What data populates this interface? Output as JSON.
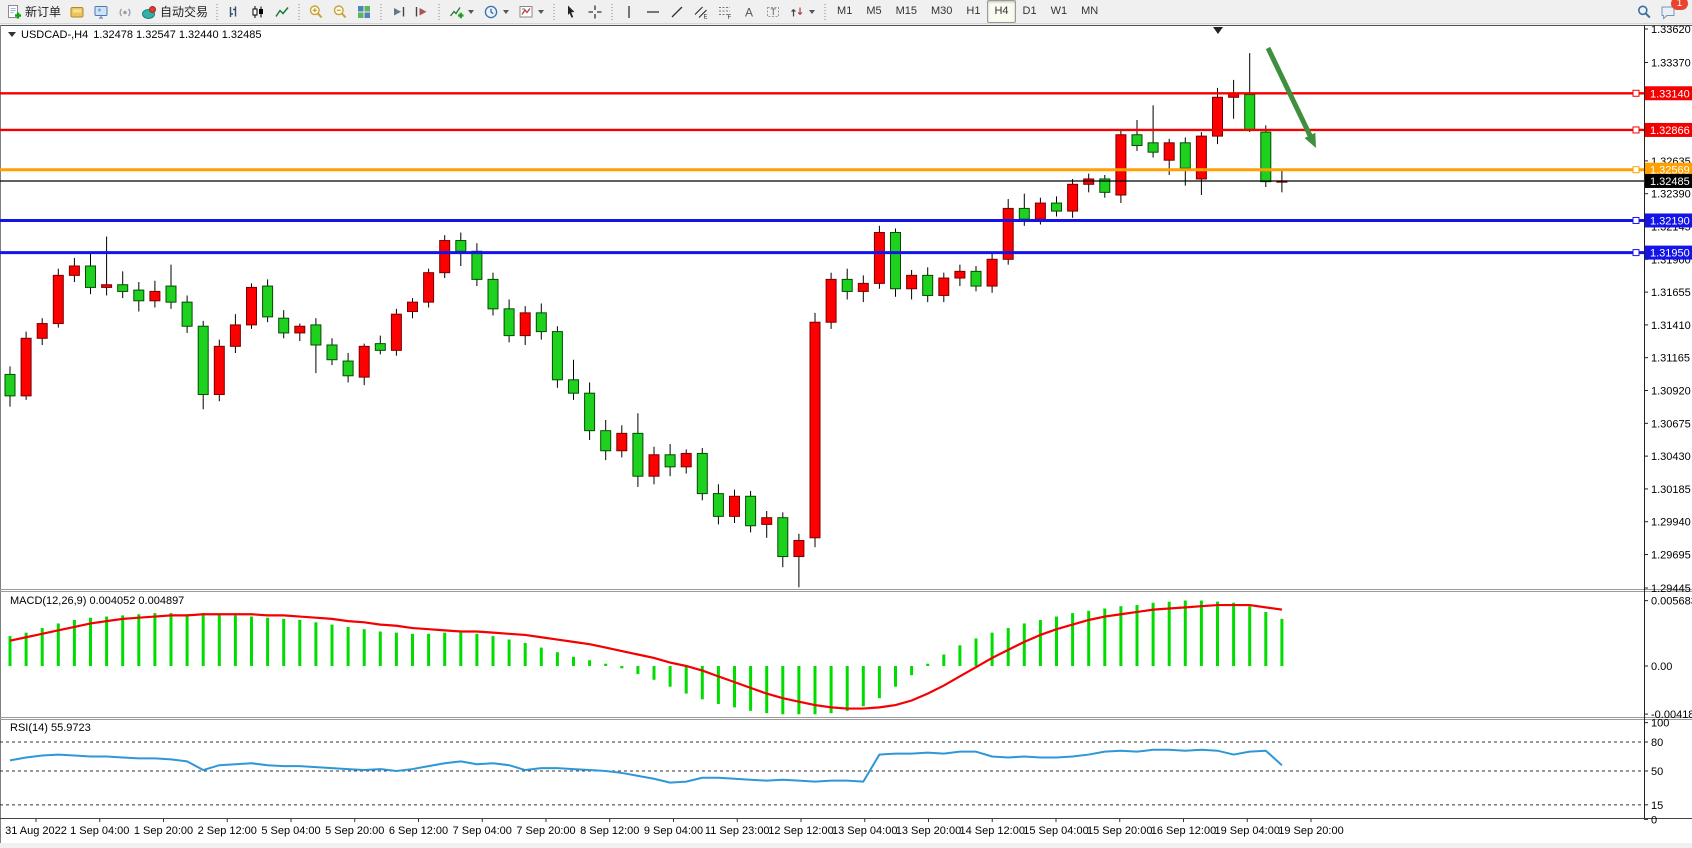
{
  "toolbar": {
    "new_order_label": "新订单",
    "auto_trading_label": "自动交易",
    "timeframes": [
      "M1",
      "M5",
      "M15",
      "M30",
      "H1",
      "H4",
      "D1",
      "W1",
      "MN"
    ],
    "active_timeframe": "H4",
    "notification_badge": "1"
  },
  "chart_header": {
    "symbol": "USDCAD-,H4",
    "ohlc": "1.32478 1.32547 1.32440 1.32485"
  },
  "price_axis": {
    "ticks": [
      "1.33620",
      "1.33370",
      "1.33125",
      "1.32880",
      "1.32635",
      "1.32390",
      "1.32145",
      "1.31900",
      "1.31655",
      "1.31410",
      "1.31165",
      "1.30920",
      "1.30675",
      "1.30430",
      "1.30185",
      "1.29940",
      "1.29695",
      "1.29445"
    ]
  },
  "levels": [
    {
      "label": "1.33140",
      "value": 1.3314,
      "color": "#f40000",
      "type": "resistance-line"
    },
    {
      "label": "1.32866",
      "value": 1.32866,
      "color": "#f40000",
      "type": "resistance-line"
    },
    {
      "label": "1.32569",
      "value": 1.32569,
      "color": "#ff9f00",
      "type": "pivot-line"
    },
    {
      "label": "1.32190",
      "value": 1.3219,
      "color": "#1414e8",
      "type": "support-line"
    },
    {
      "label": "1.31950",
      "value": 1.3195,
      "color": "#1414e8",
      "type": "support-line"
    }
  ],
  "current_price": {
    "label": "1.32485",
    "value": 1.32485,
    "color": "#000000"
  },
  "macd_panel": {
    "label": "MACD(12,26,9)",
    "values_text": "0.004052 0.004897",
    "axis_ticks": [
      "0.005683",
      "0.00",
      "-0.004182"
    ]
  },
  "rsi_panel": {
    "label": "RSI(14) 55.9723",
    "axis_ticks": [
      "100",
      "80",
      "50",
      "15",
      "0"
    ],
    "level_lines": [
      80,
      50,
      15
    ]
  },
  "time_axis": {
    "labels": [
      "31 Aug 2022",
      "1 Sep 04:00",
      "1 Sep 20:00",
      "2 Sep 12:00",
      "5 Sep 04:00",
      "5 Sep 20:00",
      "6 Sep 12:00",
      "7 Sep 04:00",
      "7 Sep 20:00",
      "8 Sep 12:00",
      "9 Sep 04:00",
      "11 Sep 23:00",
      "12 Sep 12:00",
      "13 Sep 04:00",
      "13 Sep 20:00",
      "14 Sep 12:00",
      "15 Sep 04:00",
      "15 Sep 20:00",
      "16 Sep 12:00",
      "19 Sep 04:00",
      "19 Sep 20:00"
    ]
  },
  "chart_data": {
    "type": "candlestick",
    "symbol": "USDCAD",
    "timeframe": "H4",
    "bull_color": "#ff0000",
    "bear_color": "#1fd11f",
    "wick_color": "#000000",
    "price_range": [
      1.29445,
      1.3362
    ],
    "candles": [
      [
        1.3104,
        1.311,
        1.308,
        1.3088
      ],
      [
        1.3088,
        1.3136,
        1.3085,
        1.3131
      ],
      [
        1.3131,
        1.3146,
        1.3126,
        1.3142
      ],
      [
        1.3142,
        1.3183,
        1.3139,
        1.3178
      ],
      [
        1.3178,
        1.3191,
        1.3173,
        1.3185
      ],
      [
        1.3185,
        1.3194,
        1.3164,
        1.3169
      ],
      [
        1.3169,
        1.3207,
        1.3163,
        1.3171
      ],
      [
        1.3171,
        1.3181,
        1.3161,
        1.3166
      ],
      [
        1.3167,
        1.3173,
        1.3151,
        1.3159
      ],
      [
        1.3159,
        1.3174,
        1.3154,
        1.3166
      ],
      [
        1.317,
        1.3186,
        1.3153,
        1.3158
      ],
      [
        1.3158,
        1.3163,
        1.3135,
        1.314
      ],
      [
        1.314,
        1.3144,
        1.3078,
        1.3089
      ],
      [
        1.3089,
        1.313,
        1.3084,
        1.3125
      ],
      [
        1.3125,
        1.3149,
        1.312,
        1.3141
      ],
      [
        1.3141,
        1.3172,
        1.3138,
        1.3169
      ],
      [
        1.317,
        1.3175,
        1.3143,
        1.3147
      ],
      [
        1.3146,
        1.3152,
        1.3131,
        1.3135
      ],
      [
        1.3135,
        1.3142,
        1.3129,
        1.314
      ],
      [
        1.3141,
        1.3146,
        1.3105,
        1.3126
      ],
      [
        1.3126,
        1.3131,
        1.3111,
        1.3115
      ],
      [
        1.3114,
        1.312,
        1.3098,
        1.3103
      ],
      [
        1.3102,
        1.3127,
        1.3096,
        1.3125
      ],
      [
        1.3127,
        1.3133,
        1.3119,
        1.3122
      ],
      [
        1.3122,
        1.3153,
        1.3118,
        1.3149
      ],
      [
        1.3151,
        1.3161,
        1.3146,
        1.3158
      ],
      [
        1.3158,
        1.3183,
        1.3154,
        1.318
      ],
      [
        1.318,
        1.3208,
        1.3176,
        1.3204
      ],
      [
        1.3204,
        1.321,
        1.3185,
        1.3196
      ],
      [
        1.3196,
        1.3202,
        1.317,
        1.3175
      ],
      [
        1.3175,
        1.318,
        1.3148,
        1.3153
      ],
      [
        1.3153,
        1.316,
        1.3128,
        1.3133
      ],
      [
        1.3133,
        1.3155,
        1.3126,
        1.315
      ],
      [
        1.315,
        1.3157,
        1.313,
        1.3136
      ],
      [
        1.3136,
        1.314,
        1.3094,
        1.31
      ],
      [
        1.31,
        1.3115,
        1.3085,
        1.309
      ],
      [
        1.309,
        1.3098,
        1.3055,
        1.3062
      ],
      [
        1.3062,
        1.307,
        1.304,
        1.3047
      ],
      [
        1.3047,
        1.3066,
        1.3042,
        1.306
      ],
      [
        1.306,
        1.3075,
        1.302,
        1.3028
      ],
      [
        1.3028,
        1.305,
        1.3022,
        1.3044
      ],
      [
        1.3044,
        1.3052,
        1.3028,
        1.3035
      ],
      [
        1.3035,
        1.3048,
        1.303,
        1.3045
      ],
      [
        1.3045,
        1.3049,
        1.301,
        1.3015
      ],
      [
        1.3015,
        1.3022,
        1.2992,
        1.2998
      ],
      [
        1.2998,
        1.3018,
        1.2993,
        1.3013
      ],
      [
        1.3013,
        1.3017,
        1.2986,
        1.2991
      ],
      [
        1.2992,
        1.3002,
        1.2982,
        1.2997
      ],
      [
        1.2997,
        1.3001,
        1.296,
        1.2968
      ],
      [
        1.2968,
        1.2985,
        1.2945,
        1.298
      ],
      [
        1.2982,
        1.315,
        1.2975,
        1.3143
      ],
      [
        1.3143,
        1.318,
        1.3138,
        1.3175
      ],
      [
        1.3175,
        1.3183,
        1.316,
        1.3166
      ],
      [
        1.3166,
        1.3178,
        1.3158,
        1.3172
      ],
      [
        1.3172,
        1.3215,
        1.3168,
        1.321
      ],
      [
        1.321,
        1.3213,
        1.3162,
        1.3168
      ],
      [
        1.3168,
        1.3182,
        1.316,
        1.3178
      ],
      [
        1.3178,
        1.3184,
        1.3158,
        1.3163
      ],
      [
        1.3163,
        1.318,
        1.3158,
        1.3176
      ],
      [
        1.3176,
        1.3186,
        1.317,
        1.3181
      ],
      [
        1.3181,
        1.3185,
        1.3166,
        1.317
      ],
      [
        1.317,
        1.3195,
        1.3165,
        1.319
      ],
      [
        1.319,
        1.3235,
        1.3186,
        1.3228
      ],
      [
        1.3228,
        1.3239,
        1.3215,
        1.322
      ],
      [
        1.322,
        1.3236,
        1.3216,
        1.3232
      ],
      [
        1.3232,
        1.3237,
        1.3222,
        1.3226
      ],
      [
        1.3226,
        1.325,
        1.3221,
        1.3246
      ],
      [
        1.3246,
        1.3254,
        1.324,
        1.325
      ],
      [
        1.325,
        1.3253,
        1.3236,
        1.324
      ],
      [
        1.3238,
        1.3287,
        1.3232,
        1.3283
      ],
      [
        1.3283,
        1.3294,
        1.3271,
        1.3275
      ],
      [
        1.3277,
        1.3305,
        1.3266,
        1.327
      ],
      [
        1.3264,
        1.328,
        1.3253,
        1.3277
      ],
      [
        1.3277,
        1.3281,
        1.3245,
        1.3258
      ],
      [
        1.325,
        1.3285,
        1.3238,
        1.3282
      ],
      [
        1.3282,
        1.3318,
        1.3276,
        1.3311
      ],
      [
        1.3311,
        1.3324,
        1.3295,
        1.3314
      ],
      [
        1.3313,
        1.3344,
        1.3285,
        1.3287
      ],
      [
        1.3285,
        1.329,
        1.3244,
        1.3248
      ],
      [
        1.3248,
        1.3256,
        1.324,
        1.32485
      ]
    ],
    "macd": {
      "histogram_color": "#00dc00",
      "signal_color": "#f40000",
      "histogram": [
        0.0026,
        0.0029,
        0.0033,
        0.0037,
        0.004,
        0.0042,
        0.0043,
        0.0044,
        0.0045,
        0.0046,
        0.0046,
        0.0045,
        0.0046,
        0.0045,
        0.0044,
        0.0043,
        0.0042,
        0.0041,
        0.004,
        0.0038,
        0.0036,
        0.0034,
        0.0032,
        0.003,
        0.0029,
        0.0028,
        0.0028,
        0.0029,
        0.0029,
        0.0028,
        0.0026,
        0.0023,
        0.002,
        0.0016,
        0.0012,
        0.0008,
        0.0005,
        0.0002,
        -0.0002,
        -0.0007,
        -0.0012,
        -0.0018,
        -0.0024,
        -0.0029,
        -0.0033,
        -0.0036,
        -0.0039,
        -0.0041,
        -0.0042,
        -0.0042,
        -0.0042,
        -0.0041,
        -0.0039,
        -0.0035,
        -0.0028,
        -0.0018,
        -0.0008,
        0.0002,
        0.001,
        0.0018,
        0.0024,
        0.0029,
        0.0033,
        0.0037,
        0.004,
        0.0043,
        0.0046,
        0.0048,
        0.005,
        0.0052,
        0.0053,
        0.0055,
        0.0056,
        0.0057,
        0.0057,
        0.0056,
        0.0055,
        0.0052,
        0.0047,
        0.0041
      ],
      "signal": [
        0.0022,
        0.0025,
        0.0028,
        0.0031,
        0.0034,
        0.0037,
        0.0039,
        0.0041,
        0.0042,
        0.0043,
        0.0044,
        0.0044,
        0.0045,
        0.0045,
        0.0045,
        0.0045,
        0.0044,
        0.0044,
        0.0043,
        0.0042,
        0.0041,
        0.0039,
        0.0038,
        0.0036,
        0.0035,
        0.0033,
        0.0032,
        0.0031,
        0.003,
        0.003,
        0.0029,
        0.0028,
        0.0027,
        0.0025,
        0.0023,
        0.0021,
        0.0019,
        0.0016,
        0.0013,
        0.001,
        0.0007,
        0.0003,
        0.0,
        -0.0004,
        -0.0009,
        -0.0014,
        -0.0019,
        -0.0024,
        -0.0028,
        -0.0031,
        -0.0034,
        -0.0036,
        -0.0037,
        -0.0037,
        -0.0036,
        -0.0034,
        -0.003,
        -0.0024,
        -0.0017,
        -0.0009,
        -0.0001,
        0.0007,
        0.0014,
        0.0021,
        0.0027,
        0.0032,
        0.0036,
        0.004,
        0.0043,
        0.0045,
        0.0047,
        0.0049,
        0.005,
        0.0051,
        0.0052,
        0.0053,
        0.0053,
        0.0053,
        0.0051,
        0.0049
      ],
      "value_range": [
        -0.004182,
        0.005683
      ]
    },
    "rsi": {
      "line_color": "#2e97d8",
      "series": [
        61,
        64,
        66,
        67,
        66,
        65,
        65,
        64,
        63,
        63,
        62,
        60,
        51,
        56,
        57,
        58,
        56,
        55,
        55,
        54,
        53,
        52,
        51,
        52,
        50,
        52,
        55,
        58,
        60,
        57,
        58,
        56,
        51,
        53,
        53,
        52,
        51,
        50,
        48,
        45,
        42,
        38,
        39,
        43,
        43,
        42,
        41,
        40,
        41,
        40,
        39,
        40,
        40,
        39,
        67,
        68,
        68,
        69,
        68,
        70,
        70,
        65,
        64,
        65,
        64,
        64,
        65,
        67,
        70,
        71,
        70,
        72,
        72,
        71,
        72,
        71,
        67,
        70,
        71,
        56
      ],
      "value_range": [
        0,
        100
      ]
    },
    "arrow_annotation": {
      "color": "#3f8f3f",
      "from": [
        1268,
        48
      ],
      "to": [
        1316,
        148
      ],
      "direction": "down-right"
    }
  }
}
